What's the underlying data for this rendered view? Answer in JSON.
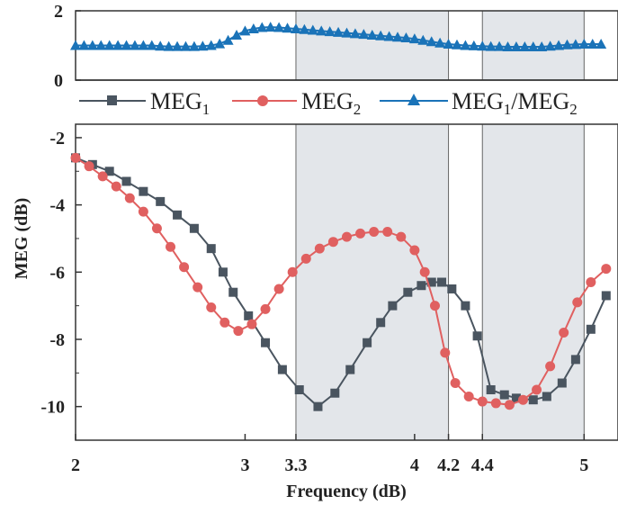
{
  "chart_data": [
    {
      "type": "line",
      "panel": "top",
      "ylim": [
        0,
        2
      ],
      "yticks": [
        "0",
        "2"
      ],
      "series": [
        {
          "name": "MEG1/MEG2",
          "color": "#1a73b8",
          "marker": "triangle",
          "x": [
            2.0,
            2.05,
            2.1,
            2.15,
            2.2,
            2.25,
            2.3,
            2.35,
            2.4,
            2.45,
            2.5,
            2.55,
            2.6,
            2.65,
            2.7,
            2.75,
            2.8,
            2.85,
            2.9,
            2.95,
            3.0,
            3.05,
            3.1,
            3.15,
            3.2,
            3.25,
            3.3,
            3.35,
            3.4,
            3.45,
            3.5,
            3.55,
            3.6,
            3.65,
            3.7,
            3.75,
            3.8,
            3.85,
            3.9,
            3.95,
            4.0,
            4.05,
            4.1,
            4.15,
            4.2,
            4.25,
            4.3,
            4.35,
            4.4,
            4.45,
            4.5,
            4.55,
            4.6,
            4.65,
            4.7,
            4.75,
            4.8,
            4.85,
            4.9,
            4.95,
            5.0,
            5.05,
            5.1
          ],
          "y": [
            1.0,
            1.0,
            1.0,
            1.0,
            1.0,
            1.0,
            1.0,
            1.0,
            1.0,
            1.0,
            0.98,
            0.97,
            0.97,
            0.97,
            0.97,
            0.98,
            1.0,
            1.05,
            1.15,
            1.3,
            1.42,
            1.48,
            1.52,
            1.53,
            1.52,
            1.5,
            1.48,
            1.46,
            1.44,
            1.42,
            1.4,
            1.38,
            1.36,
            1.34,
            1.32,
            1.3,
            1.28,
            1.26,
            1.24,
            1.22,
            1.19,
            1.15,
            1.11,
            1.07,
            1.04,
            1.02,
            1.0,
            0.99,
            0.98,
            0.97,
            0.97,
            0.96,
            0.96,
            0.96,
            0.96,
            0.96,
            0.98,
            1.0,
            1.02,
            1.03,
            1.04,
            1.04,
            1.04
          ]
        }
      ]
    },
    {
      "type": "line",
      "panel": "bottom",
      "xlabel": "Frequency (dB)",
      "ylabel": "MEG (dB)",
      "xlim": [
        2,
        5.2
      ],
      "ylim": [
        -11,
        -1.6
      ],
      "xticks": [
        2,
        3,
        3.3,
        4,
        4.2,
        4.4,
        5
      ],
      "xtick_labels": [
        "2",
        "3",
        "3.3",
        "4",
        "4.2",
        "4.4",
        "5"
      ],
      "yticks": [
        -2,
        -4,
        -6,
        -8,
        -10
      ],
      "ytick_labels": [
        "-2",
        "-4",
        "-6",
        "-8",
        "-10"
      ],
      "shaded_bands": [
        [
          3.3,
          4.2
        ],
        [
          4.4,
          5.0
        ]
      ],
      "legend": "top",
      "series": [
        {
          "name": "MEG1",
          "color": "#4a5560",
          "marker": "square",
          "x": [
            2.0,
            2.1,
            2.2,
            2.3,
            2.4,
            2.5,
            2.6,
            2.7,
            2.8,
            2.87,
            2.93,
            3.02,
            3.12,
            3.22,
            3.32,
            3.43,
            3.53,
            3.62,
            3.72,
            3.8,
            3.87,
            3.96,
            4.04,
            4.1,
            4.16,
            4.22,
            4.3,
            4.37,
            4.45,
            4.53,
            4.6,
            4.7,
            4.78,
            4.87,
            4.95,
            5.04,
            5.13
          ],
          "y": [
            -2.6,
            -2.8,
            -3.0,
            -3.3,
            -3.6,
            -3.9,
            -4.3,
            -4.7,
            -5.3,
            -6.0,
            -6.6,
            -7.3,
            -8.1,
            -8.9,
            -9.5,
            -10.0,
            -9.6,
            -8.9,
            -8.1,
            -7.5,
            -7.0,
            -6.6,
            -6.4,
            -6.3,
            -6.3,
            -6.5,
            -7.0,
            -7.9,
            -9.5,
            -9.65,
            -9.75,
            -9.8,
            -9.7,
            -9.3,
            -8.6,
            -7.7,
            -6.7
          ]
        },
        {
          "name": "MEG2",
          "color": "#e06060",
          "marker": "circle",
          "x": [
            2.0,
            2.08,
            2.16,
            2.24,
            2.32,
            2.4,
            2.48,
            2.56,
            2.64,
            2.72,
            2.8,
            2.88,
            2.96,
            3.04,
            3.12,
            3.2,
            3.28,
            3.36,
            3.44,
            3.52,
            3.6,
            3.68,
            3.76,
            3.84,
            3.92,
            4.0,
            4.06,
            4.12,
            4.18,
            4.24,
            4.32,
            4.4,
            4.48,
            4.56,
            4.64,
            4.72,
            4.8,
            4.88,
            4.96,
            5.04,
            5.13
          ],
          "y": [
            -2.6,
            -2.85,
            -3.15,
            -3.45,
            -3.8,
            -4.2,
            -4.7,
            -5.25,
            -5.85,
            -6.45,
            -7.05,
            -7.5,
            -7.75,
            -7.55,
            -7.1,
            -6.5,
            -6.0,
            -5.6,
            -5.3,
            -5.1,
            -4.95,
            -4.85,
            -4.8,
            -4.8,
            -4.95,
            -5.35,
            -6.0,
            -7.0,
            -8.4,
            -9.3,
            -9.7,
            -9.85,
            -9.9,
            -9.95,
            -9.8,
            -9.5,
            -8.8,
            -7.8,
            -6.9,
            -6.3,
            -5.9
          ]
        }
      ]
    }
  ]
}
